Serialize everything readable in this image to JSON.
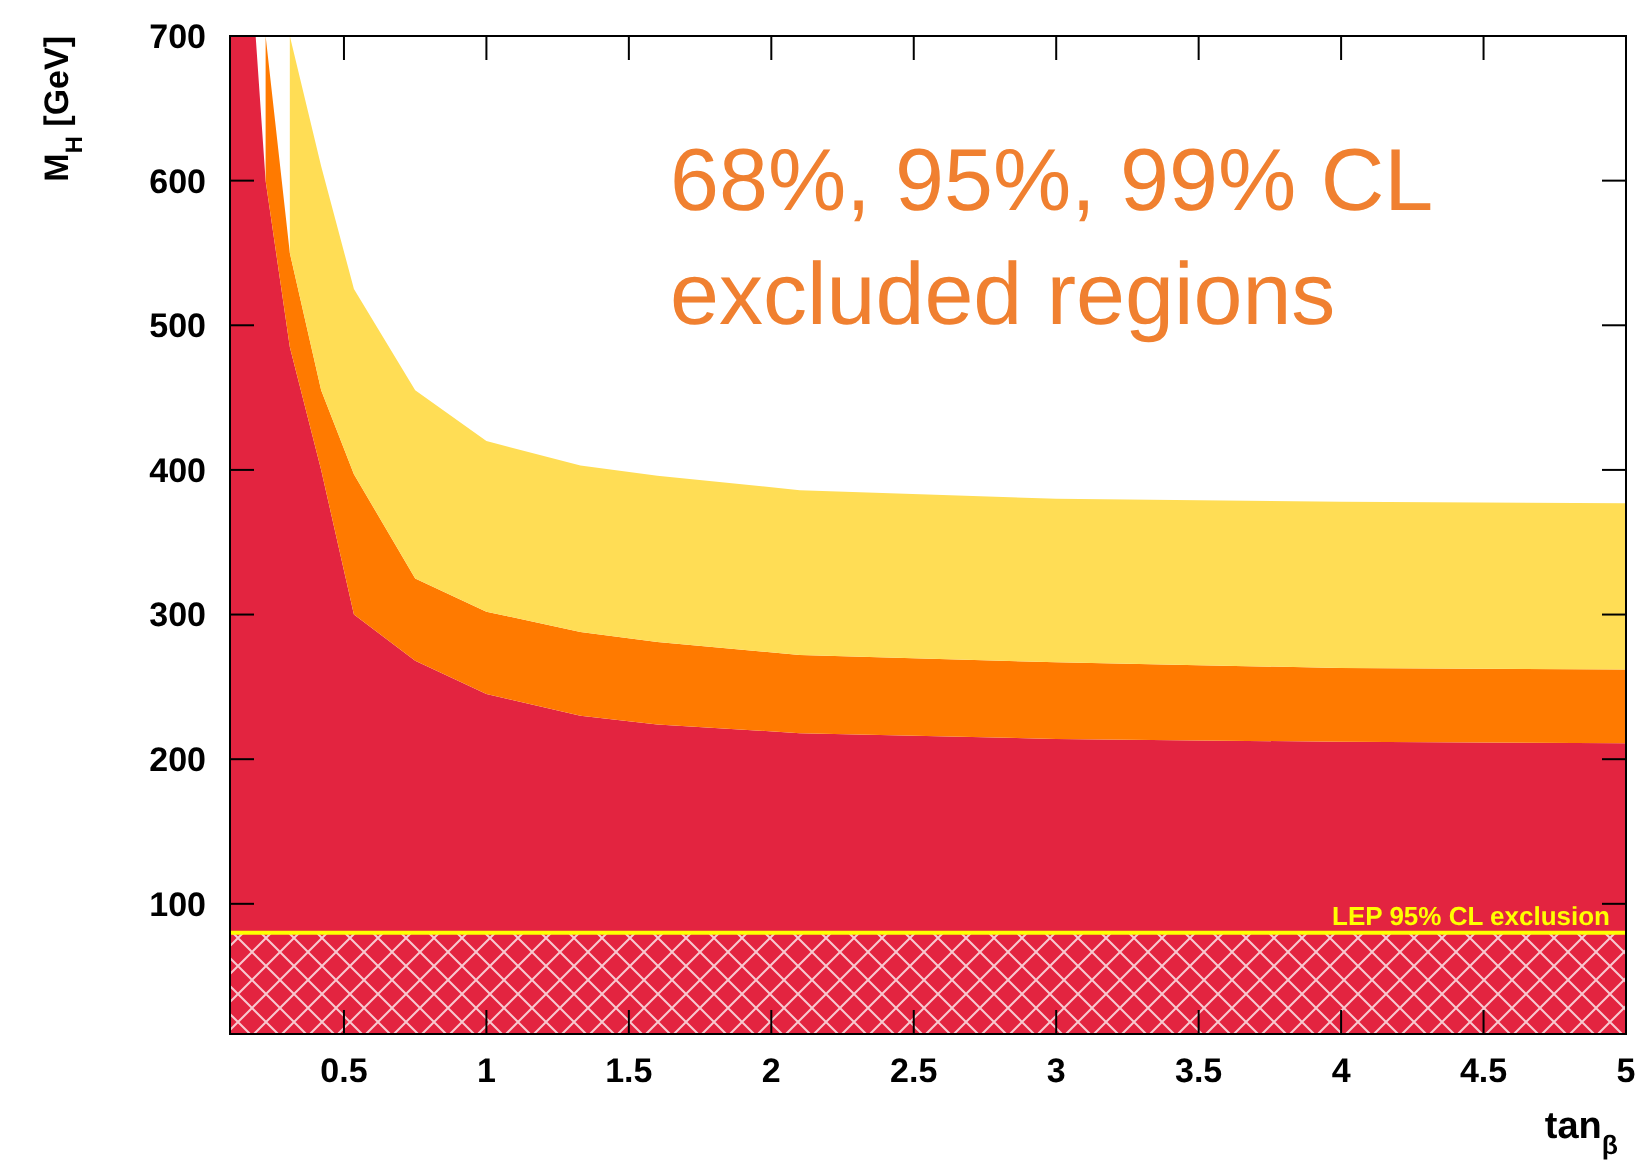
{
  "chart_data": {
    "type": "area",
    "xlabel": "tan$_{β}$",
    "ylabel": "M$_{H}$ [GeV]",
    "xlim": [
      0.1,
      5
    ],
    "ylim": [
      10,
      700
    ],
    "xticks": [
      0.5,
      1,
      1.5,
      2,
      2.5,
      3,
      3.5,
      4,
      4.5,
      5
    ],
    "yticks": [
      100,
      200,
      300,
      400,
      500,
      600,
      700
    ],
    "grid": false,
    "stacked": true,
    "x": [
      0.1,
      0.19,
      0.225,
      0.31,
      0.42,
      0.535,
      0.75,
      1,
      1.33,
      1.6,
      2.1,
      3,
      3.5,
      4,
      5
    ],
    "series": [
      {
        "color": "#e32440",
        "values": [
          700,
          700,
          600,
          485,
          400,
          300,
          268,
          245,
          230,
          224,
          218,
          214,
          213,
          212,
          211
        ]
      },
      {
        "color": "#ff7a00",
        "values": [
          null,
          null,
          100,
          65,
          55,
          97,
          57,
          57,
          58,
          57,
          54,
          53,
          52,
          51,
          51
        ]
      },
      {
        "color": "#ffdd55",
        "values": [
          null,
          null,
          null,
          150,
          155,
          128,
          130,
          118,
          115,
          115,
          114,
          113,
          114,
          115,
          115
        ]
      }
    ],
    "bands": [
      {
        "axis": "y",
        "from": 10,
        "to": 80,
        "label": "LEP 95% CL exclusion"
      }
    ],
    "ref_lines": [
      {
        "axis": "y",
        "value": 80,
        "color": "#ffff00"
      }
    ],
    "annotations": [
      "68%, 95%, 99% CL\nexcluded regions"
    ]
  }
}
